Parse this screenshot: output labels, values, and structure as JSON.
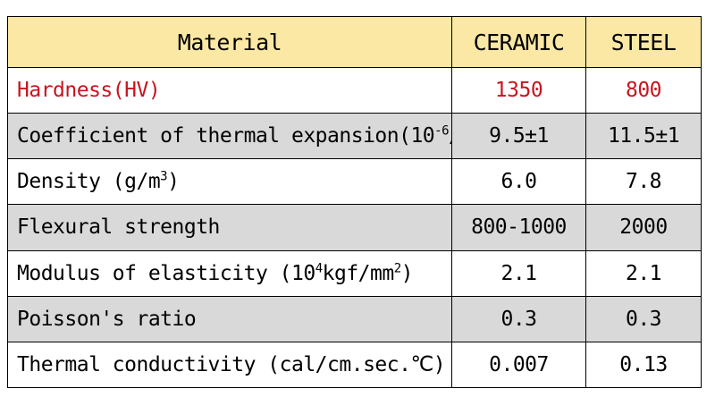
{
  "table": {
    "headers": [
      "Material",
      "CERAMIC",
      "STEEL"
    ],
    "accent_color": "#c8141e",
    "header_bg": "#fbe8a4",
    "shade_bg": "#d9d9d9",
    "rows": [
      {
        "label": "Hardness(HV)",
        "ceramic": "1350",
        "steel": "800",
        "style": "accent"
      },
      {
        "label_pre": "Coefficient of thermal expansion(10",
        "label_sup": "-6",
        "label_post": "/℃)",
        "ceramic": "9.5±1",
        "steel": "11.5±1",
        "style": "shaded"
      },
      {
        "label_pre": "Density (g/m",
        "label_sup": "3",
        "label_post": ")",
        "ceramic": "6.0",
        "steel": "7.8",
        "style": "plain"
      },
      {
        "label": "Flexural strength",
        "ceramic": "800-1000",
        "steel": "2000",
        "style": "shaded"
      },
      {
        "label_pre": "Modulus of elasticity (10",
        "label_sup": "4",
        "label_mid": "kgf/mm",
        "label_sup2": "2",
        "label_post": ")",
        "ceramic": "2.1",
        "steel": "2.1",
        "style": "plain"
      },
      {
        "label": "Poisson's ratio",
        "ceramic": "0.3",
        "steel": "0.3",
        "style": "shaded"
      },
      {
        "label": "Thermal conductivity (cal/cm.sec.℃)",
        "ceramic": "0.007",
        "steel": "0.13",
        "style": "plain"
      }
    ]
  }
}
